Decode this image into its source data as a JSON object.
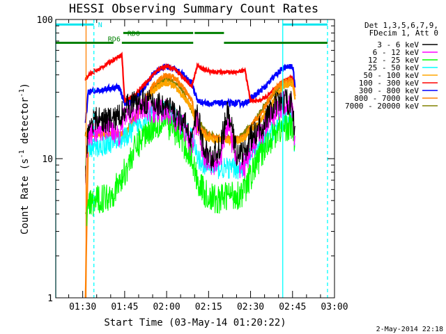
{
  "chart_data": {
    "type": "line",
    "title": "HESSI Observing Summary Count Rates",
    "xlabel": "Start Time (03-May-14 01:20:22)",
    "ylabel": "Count Rate (s⁻¹ detector⁻¹)",
    "ylabel_main": "Count Rate (s",
    "ylabel_sup1": "-1",
    "ylabel_mid": " detector",
    "ylabel_sup2": "-1",
    "ylabel_end": ")",
    "yscale": "log",
    "ylim": [
      1,
      100
    ],
    "xlim": [
      "01:20:22",
      "03:00:00"
    ],
    "xlim_minutes": [
      80.37,
      180
    ],
    "ytick_labels": [
      "1",
      "10",
      "100"
    ],
    "ytick_values": [
      1,
      10,
      100
    ],
    "xtick_labels": [
      "01:30",
      "01:45",
      "02:00",
      "02:15",
      "02:30",
      "02:45",
      "03:00"
    ],
    "xtick_values": [
      90,
      105,
      120,
      135,
      150,
      165,
      180
    ],
    "legend_header": [
      "Det 1,3,5,6,7,9,",
      "FDecim 1, Att 0"
    ],
    "legend_position": "right",
    "timestamp": "2-May-2014 22:18",
    "series": [
      {
        "name": "3 - 6 keV",
        "color": "#000000",
        "points": [
          [
            91,
            7.5
          ],
          [
            92,
            18
          ],
          [
            95,
            19
          ],
          [
            100,
            19
          ],
          [
            103,
            20
          ],
          [
            105,
            23
          ],
          [
            108,
            25
          ],
          [
            112,
            26
          ],
          [
            116,
            25
          ],
          [
            119,
            24
          ],
          [
            121,
            23
          ],
          [
            124,
            20
          ],
          [
            127,
            17
          ],
          [
            129,
            14
          ],
          [
            131,
            22
          ],
          [
            133,
            12
          ],
          [
            136,
            10
          ],
          [
            139,
            12
          ],
          [
            142,
            22
          ],
          [
            145,
            11
          ],
          [
            148,
            11
          ],
          [
            150,
            14
          ],
          [
            153,
            16
          ],
          [
            156,
            20
          ],
          [
            159,
            24
          ],
          [
            162,
            26
          ],
          [
            165,
            25
          ],
          [
            166,
            13
          ]
        ]
      },
      {
        "name": "6 - 12 keV",
        "color": "#ff00ff",
        "points": [
          [
            91,
            7
          ],
          [
            92,
            15
          ],
          [
            95,
            16
          ],
          [
            100,
            17
          ],
          [
            103,
            15
          ],
          [
            105,
            20
          ],
          [
            108,
            22
          ],
          [
            112,
            23
          ],
          [
            116,
            22
          ],
          [
            119,
            22
          ],
          [
            121,
            21
          ],
          [
            124,
            18
          ],
          [
            127,
            16
          ],
          [
            129,
            12
          ],
          [
            131,
            19
          ],
          [
            133,
            11
          ],
          [
            136,
            9
          ],
          [
            139,
            10
          ],
          [
            142,
            19
          ],
          [
            145,
            9
          ],
          [
            148,
            9
          ],
          [
            150,
            12
          ],
          [
            153,
            14
          ],
          [
            156,
            18
          ],
          [
            159,
            22
          ],
          [
            162,
            25
          ],
          [
            165,
            24
          ],
          [
            166,
            11
          ]
        ]
      },
      {
        "name": "12 - 25 keV",
        "color": "#00ff00",
        "points": [
          [
            91,
            3.5
          ],
          [
            92,
            4.5
          ],
          [
            95,
            5
          ],
          [
            100,
            5.5
          ],
          [
            103,
            6.5
          ],
          [
            105,
            8
          ],
          [
            108,
            11
          ],
          [
            112,
            15
          ],
          [
            115,
            17
          ],
          [
            118,
            18
          ],
          [
            120,
            18
          ],
          [
            123,
            16
          ],
          [
            126,
            13
          ],
          [
            129,
            10
          ],
          [
            131,
            7
          ],
          [
            134,
            5.5
          ],
          [
            138,
            5
          ],
          [
            142,
            5.5
          ],
          [
            146,
            5.5
          ],
          [
            148,
            6
          ],
          [
            150,
            7.5
          ],
          [
            153,
            10
          ],
          [
            156,
            13
          ],
          [
            159,
            15.5
          ],
          [
            162,
            17
          ],
          [
            165,
            17
          ],
          [
            166,
            12
          ]
        ]
      },
      {
        "name": "25 - 50 keV",
        "color": "#00ffff",
        "points": [
          [
            91,
            9
          ],
          [
            92,
            12
          ],
          [
            95,
            12
          ],
          [
            100,
            13
          ],
          [
            103,
            14
          ],
          [
            105,
            14
          ],
          [
            108,
            16
          ],
          [
            112,
            19
          ],
          [
            115,
            21
          ],
          [
            118,
            22
          ],
          [
            120,
            22
          ],
          [
            123,
            20
          ],
          [
            126,
            17
          ],
          [
            129,
            14
          ],
          [
            131,
            10
          ],
          [
            134,
            9
          ],
          [
            138,
            8.5
          ],
          [
            142,
            8.5
          ],
          [
            146,
            8.5
          ],
          [
            148,
            9
          ],
          [
            150,
            10.5
          ],
          [
            153,
            12
          ],
          [
            156,
            14
          ],
          [
            159,
            17
          ],
          [
            162,
            19
          ],
          [
            165,
            19
          ],
          [
            166,
            11
          ]
        ]
      },
      {
        "name": "50 - 100 keV",
        "color": "#ffa500",
        "points": [
          [
            91,
            15
          ],
          [
            92,
            15
          ],
          [
            95,
            15
          ],
          [
            100,
            15
          ],
          [
            103,
            15
          ],
          [
            105,
            15
          ],
          [
            108,
            18
          ],
          [
            112,
            25
          ],
          [
            115,
            30
          ],
          [
            118,
            34
          ],
          [
            120,
            35
          ],
          [
            123,
            33
          ],
          [
            126,
            28
          ],
          [
            129,
            23
          ],
          [
            131,
            16
          ],
          [
            134,
            14
          ],
          [
            138,
            13.5
          ],
          [
            142,
            13.5
          ],
          [
            146,
            13.5
          ],
          [
            148,
            14
          ],
          [
            150,
            16
          ],
          [
            153,
            18
          ],
          [
            156,
            22
          ],
          [
            159,
            28
          ],
          [
            162,
            33
          ],
          [
            165,
            35
          ],
          [
            166,
            26
          ]
        ]
      },
      {
        "name": "100 - 300 keV",
        "color": "#ff0000",
        "points": [
          [
            91,
            37
          ],
          [
            92,
            40
          ],
          [
            94,
            42
          ],
          [
            96,
            44
          ],
          [
            98,
            47
          ],
          [
            100,
            50
          ],
          [
            102,
            53
          ],
          [
            104,
            56
          ],
          [
            105,
            26
          ],
          [
            108,
            28
          ],
          [
            112,
            34
          ],
          [
            115,
            40
          ],
          [
            118,
            45
          ],
          [
            120,
            46
          ],
          [
            123,
            44
          ],
          [
            126,
            38
          ],
          [
            129,
            33
          ],
          [
            131,
            47
          ],
          [
            133,
            44
          ],
          [
            136,
            42
          ],
          [
            139,
            42
          ],
          [
            142,
            42
          ],
          [
            145,
            42
          ],
          [
            148,
            43
          ],
          [
            150,
            26
          ],
          [
            153,
            26
          ],
          [
            156,
            28
          ],
          [
            159,
            32
          ],
          [
            162,
            37
          ],
          [
            165,
            38
          ],
          [
            166,
            28
          ]
        ]
      },
      {
        "name": "300 - 800 keV",
        "color": "#0000ff",
        "points": [
          [
            91,
            18
          ],
          [
            92,
            30
          ],
          [
            95,
            31
          ],
          [
            100,
            32
          ],
          [
            103,
            33
          ],
          [
            105,
            25
          ],
          [
            108,
            26
          ],
          [
            112,
            32
          ],
          [
            115,
            40
          ],
          [
            118,
            45
          ],
          [
            120,
            46
          ],
          [
            123,
            44
          ],
          [
            126,
            40
          ],
          [
            129,
            35
          ],
          [
            131,
            26
          ],
          [
            134,
            25
          ],
          [
            138,
            25
          ],
          [
            142,
            25
          ],
          [
            146,
            25
          ],
          [
            148,
            25
          ],
          [
            150,
            27
          ],
          [
            153,
            30
          ],
          [
            156,
            34
          ],
          [
            159,
            40
          ],
          [
            162,
            45
          ],
          [
            165,
            46
          ],
          [
            166,
            32
          ]
        ]
      },
      {
        "name": "800 - 7000 keV",
        "color": "#ff8000",
        "points": [
          [
            91,
            1
          ],
          [
            92,
            15
          ],
          [
            95,
            15
          ],
          [
            100,
            15
          ],
          [
            103,
            15
          ],
          [
            105,
            15
          ],
          [
            108,
            18
          ],
          [
            112,
            26
          ],
          [
            115,
            33
          ],
          [
            118,
            38
          ],
          [
            120,
            40
          ],
          [
            123,
            38
          ],
          [
            126,
            32
          ],
          [
            129,
            26
          ],
          [
            131,
            17
          ],
          [
            134,
            15
          ],
          [
            138,
            14
          ],
          [
            142,
            14
          ],
          [
            146,
            14
          ],
          [
            148,
            14.5
          ],
          [
            150,
            17
          ],
          [
            153,
            20
          ],
          [
            156,
            25
          ],
          [
            159,
            32
          ],
          [
            162,
            36
          ],
          [
            165,
            37
          ],
          [
            166,
            26
          ]
        ]
      },
      {
        "name": "7000 - 20000 keV",
        "color": "#808000",
        "points": [
          [
            91,
            15
          ],
          [
            95,
            15
          ],
          [
            100,
            15
          ],
          [
            105,
            15
          ],
          [
            110,
            22
          ],
          [
            115,
            32
          ],
          [
            120,
            38
          ],
          [
            125,
            33
          ],
          [
            130,
            20
          ],
          [
            135,
            15
          ],
          [
            140,
            14
          ],
          [
            145,
            14
          ],
          [
            150,
            17
          ],
          [
            155,
            24
          ],
          [
            160,
            32
          ],
          [
            165,
            35
          ]
        ]
      }
    ],
    "bars": [
      {
        "label": "N",
        "color": "#00e5ee",
        "segments": [
          [
            80.37,
            94.0
          ],
          [
            161.5,
            177.5
          ]
        ],
        "level": 92
      },
      {
        "label": "RD0",
        "color": "#008000",
        "segments": [
          [
            104.5,
            129.5
          ],
          [
            130.0,
            140.5
          ]
        ],
        "level": 80
      },
      {
        "label": "RD6",
        "color": "#008000",
        "segments": [
          [
            80.37,
            101.0
          ],
          [
            104.0,
            129.5
          ],
          [
            140.5,
            177.5
          ]
        ],
        "level": 68
      }
    ],
    "vlines": [
      {
        "x": 80.37,
        "color": "#00ffff",
        "style": "solid"
      },
      {
        "x": 91.2,
        "color": "#ff8000",
        "style": "solid"
      },
      {
        "x": 94.0,
        "color": "#00ffff",
        "style": "dashed"
      },
      {
        "x": 161.5,
        "color": "#00ffff",
        "style": "solid"
      },
      {
        "x": 177.5,
        "color": "#00ffff",
        "style": "dashed"
      }
    ],
    "grid": false
  }
}
